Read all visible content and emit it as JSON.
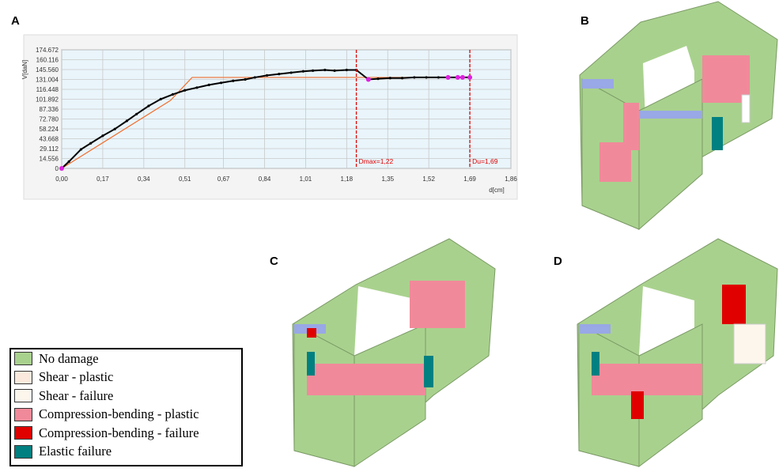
{
  "panels": {
    "a": "A",
    "b": "B",
    "c": "C",
    "d": "D"
  },
  "colors": {
    "no_damage": "#a9d18e",
    "shear_plastic": "#fbe9dd",
    "shear_failure": "#fdf6ec",
    "compression_bending_plastic": "#f08a9a",
    "compression_bending_failure": "#e00000",
    "elastic_failure": "#008080",
    "edge_band": "#99a8e6",
    "curve": "#000000",
    "bilinear": "#f07030",
    "marker_line": "#e00000",
    "markers": "#e020e0",
    "plot_bg": "#e9f5fb"
  },
  "legend": [
    {
      "label": "No damage",
      "color_key": "no_damage"
    },
    {
      "label": "Shear - plastic",
      "color_key": "shear_plastic"
    },
    {
      "label": "Shear - failure",
      "color_key": "shear_failure"
    },
    {
      "label": "Compression-bending - plastic",
      "color_key": "compression_bending_plastic"
    },
    {
      "label": "Compression-bending - failure",
      "color_key": "compression_bending_failure"
    },
    {
      "label": "Elastic failure",
      "color_key": "elastic_failure"
    }
  ],
  "chart_data": {
    "type": "line",
    "ylabel": "V[daN]",
    "xlabel": "d[cm]",
    "xlim": [
      0,
      1.86
    ],
    "ylim": [
      0,
      174.672
    ],
    "xticks": [
      "0,00",
      "0,17",
      "0,34",
      "0,51",
      "0,67",
      "0,84",
      "1,01",
      "1,18",
      "1,35",
      "1,52",
      "1,69",
      "1,86"
    ],
    "xtick_values": [
      0,
      0.17,
      0.34,
      0.51,
      0.67,
      0.84,
      1.01,
      1.18,
      1.35,
      1.52,
      1.69,
      1.86
    ],
    "yticks": [
      "174.672",
      "160.116",
      "145.560",
      "131.004",
      "116.448",
      "101.892",
      "87.336",
      "72.780",
      "58.224",
      "43.668",
      "29.112",
      "14.556",
      "0"
    ],
    "ytick_values": [
      174.672,
      160.116,
      145.56,
      131.004,
      116.448,
      101.892,
      87.336,
      72.78,
      58.224,
      43.668,
      29.112,
      14.556,
      0
    ],
    "grid": true,
    "series": [
      {
        "x": [
          0,
          0.03,
          0.08,
          0.12,
          0.17,
          0.22,
          0.27,
          0.31,
          0.36,
          0.41,
          0.46,
          0.51,
          0.56,
          0.61,
          0.66,
          0.71,
          0.76,
          0.8,
          0.85,
          0.9,
          0.95,
          1.0,
          1.04,
          1.09,
          1.13,
          1.18,
          1.22,
          1.27,
          1.31,
          1.36,
          1.41,
          1.46,
          1.51,
          1.56,
          1.6,
          1.64,
          1.69
        ],
        "y": [
          0,
          10,
          28,
          37,
          48,
          58,
          70,
          80,
          92,
          102,
          109,
          115,
          119,
          123,
          126,
          129,
          131,
          134,
          137,
          139,
          141,
          143,
          144,
          145,
          144,
          145,
          145,
          131,
          132,
          133,
          133,
          134,
          134,
          134,
          134,
          134,
          134
        ]
      },
      {
        "x": [
          0,
          0.45,
          0.54,
          1.69
        ],
        "y": [
          0,
          100,
          134,
          134
        ]
      }
    ],
    "vlines": [
      {
        "x": 1.22,
        "label": "Dmax=1,22"
      },
      {
        "x": 1.69,
        "label": "Du=1,69"
      }
    ],
    "highlight_points": {
      "x": [
        0,
        1.27,
        1.6,
        1.64,
        1.66,
        1.69
      ],
      "y": [
        0,
        131,
        134,
        134,
        134,
        134
      ]
    }
  }
}
